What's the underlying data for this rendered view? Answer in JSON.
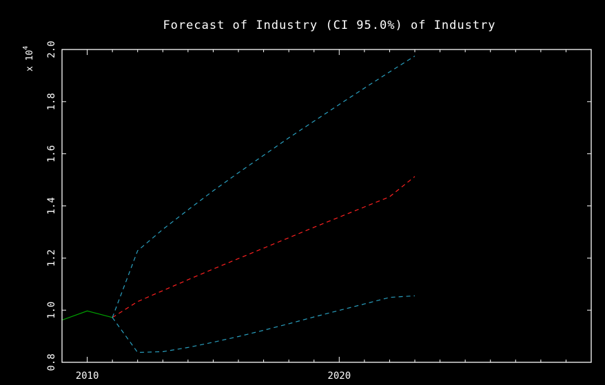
{
  "chart_data": {
    "type": "line",
    "title": "Forecast of Industry (CI 95.0%) of Industry",
    "xlabel": "",
    "ylabel": "",
    "y_multiplier_prefix": "x 10",
    "y_multiplier_exp": "4",
    "xlim": [
      2009.0,
      2030.0
    ],
    "ylim": [
      0.8,
      2.0
    ],
    "x_ticks": [
      2010,
      2020
    ],
    "x_tick_labels": [
      "2010",
      "2020"
    ],
    "y_ticks": [
      0.8,
      1.0,
      1.2,
      1.4,
      1.6,
      1.8,
      2.0
    ],
    "y_tick_labels": [
      "0.8",
      "1.0",
      "1.2",
      "1.4",
      "1.6",
      "1.8",
      "2.0"
    ],
    "grid": false,
    "series": [
      {
        "role": "history",
        "color": "#00a000",
        "dash": "solid",
        "x": [
          2009,
          2010,
          2011
        ],
        "y": [
          0.962,
          0.997,
          0.972
        ]
      },
      {
        "role": "forecast",
        "color": "#ff2020",
        "dash": "dashed",
        "x": [
          2011,
          2012,
          2013,
          2014,
          2015,
          2016,
          2017,
          2018,
          2019,
          2020,
          2021,
          2022,
          2023
        ],
        "y": [
          0.972,
          1.033,
          1.075,
          1.117,
          1.158,
          1.198,
          1.238,
          1.278,
          1.318,
          1.357,
          1.396,
          1.435,
          1.513
        ]
      },
      {
        "role": "upper-ci",
        "color": "#2aa0c0",
        "dash": "dashed",
        "x": [
          2011,
          2012,
          2013,
          2014,
          2015,
          2016,
          2017,
          2018,
          2019,
          2020,
          2021,
          2022,
          2023
        ],
        "y": [
          0.972,
          1.228,
          1.31,
          1.385,
          1.458,
          1.527,
          1.594,
          1.661,
          1.725,
          1.789,
          1.852,
          1.914,
          1.975
        ]
      },
      {
        "role": "lower-ci",
        "color": "#2aa0c0",
        "dash": "dashed",
        "x": [
          2011,
          2012,
          2013,
          2014,
          2015,
          2016,
          2017,
          2018,
          2019,
          2020,
          2021,
          2022,
          2023
        ],
        "y": [
          0.972,
          0.838,
          0.841,
          0.857,
          0.877,
          0.899,
          0.923,
          0.948,
          0.974,
          0.999,
          1.024,
          1.049,
          1.055
        ]
      }
    ]
  }
}
